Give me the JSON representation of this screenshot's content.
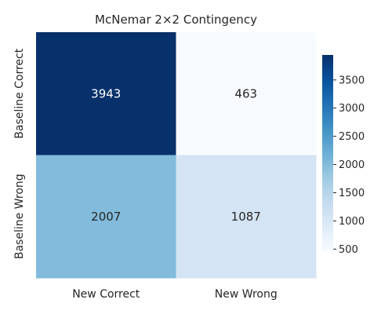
{
  "chart_data": {
    "type": "heatmap",
    "title": "McNemar 2×2 Contingency",
    "rows": [
      "Baseline Correct",
      "Baseline Wrong"
    ],
    "columns": [
      "New Correct",
      "New Wrong"
    ],
    "values": [
      [
        3943,
        463
      ],
      [
        2007,
        1087
      ]
    ],
    "colormap": "Blues",
    "colorbar": {
      "range": [
        463,
        3943
      ],
      "ticks": [
        500,
        1000,
        1500,
        2000,
        2500,
        3000,
        3500
      ]
    },
    "grid": false,
    "legend": "right"
  }
}
